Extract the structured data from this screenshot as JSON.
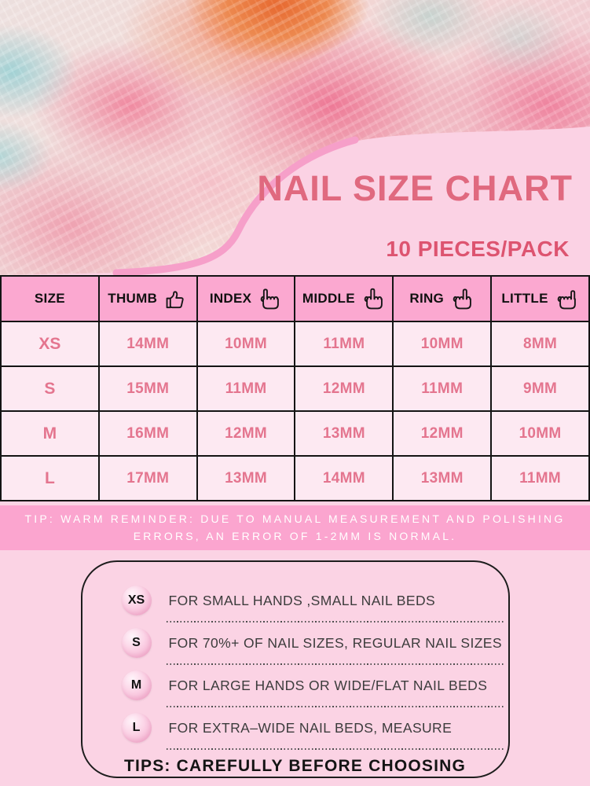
{
  "hero": {
    "title": "NAIL SIZE CHART",
    "subtitle": "10 PIECES/PACK"
  },
  "chart_data": {
    "type": "table",
    "title": "NAIL SIZE CHART",
    "subtitle": "10 PIECES/PACK",
    "columns": [
      "SIZE",
      "THUMB",
      "INDEX",
      "MIDDLE",
      "RING",
      "LITTLE"
    ],
    "rows": [
      {
        "size": "XS",
        "values": [
          "14MM",
          "10MM",
          "11MM",
          "10MM",
          "8MM"
        ]
      },
      {
        "size": "S",
        "values": [
          "15MM",
          "11MM",
          "12MM",
          "11MM",
          "9MM"
        ]
      },
      {
        "size": "M",
        "values": [
          "16MM",
          "12MM",
          "13MM",
          "12MM",
          "10MM"
        ]
      },
      {
        "size": "L",
        "values": [
          "17MM",
          "13MM",
          "14MM",
          "13MM",
          "11MM"
        ]
      }
    ],
    "unit": "MM"
  },
  "table": {
    "header": [
      {
        "label": "SIZE",
        "icon": null
      },
      {
        "label": "THUMB",
        "icon": "thumb-up-icon"
      },
      {
        "label": "INDEX",
        "icon": "index-finger-icon"
      },
      {
        "label": "MIDDLE",
        "icon": "middle-finger-icon"
      },
      {
        "label": "RING",
        "icon": "ring-finger-icon"
      },
      {
        "label": "LITTLE",
        "icon": "little-finger-icon"
      }
    ]
  },
  "tip_banner": {
    "line1": "TIP: WARM REMINDER: DUE TO MANUAL MEASUREMENT AND POLISHING",
    "line2": "ERRORS, AN ERROR OF 1-2MM IS NORMAL."
  },
  "size_guide": {
    "items": [
      {
        "size": "XS",
        "description": "FOR SMALL HANDS ,SMALL NAIL BEDS"
      },
      {
        "size": "S",
        "description": "FOR 70%+ OF NAIL SIZES, REGULAR NAIL SIZES"
      },
      {
        "size": "M",
        "description": "FOR LARGE HANDS OR WIDE/FLAT NAIL BEDS"
      },
      {
        "size": "L",
        "description": "FOR EXTRA–WIDE NAIL BEDS, MEASURE"
      }
    ],
    "footer": "TIPS: CAREFULLY BEFORE CHOOSING"
  },
  "colors": {
    "page_bg": "#fbd3e4",
    "panel_pink": "#fbd2e4",
    "curve_accent": "#f69fc9",
    "header_row_pink": "#fba8d0",
    "data_row_pink": "#fde9f2",
    "banner_pink": "#fba5cf",
    "title_rose": "#e0697f",
    "subtitle_rose": "#dd5470",
    "value_rose": "#e4758f",
    "border_black": "#141414"
  }
}
